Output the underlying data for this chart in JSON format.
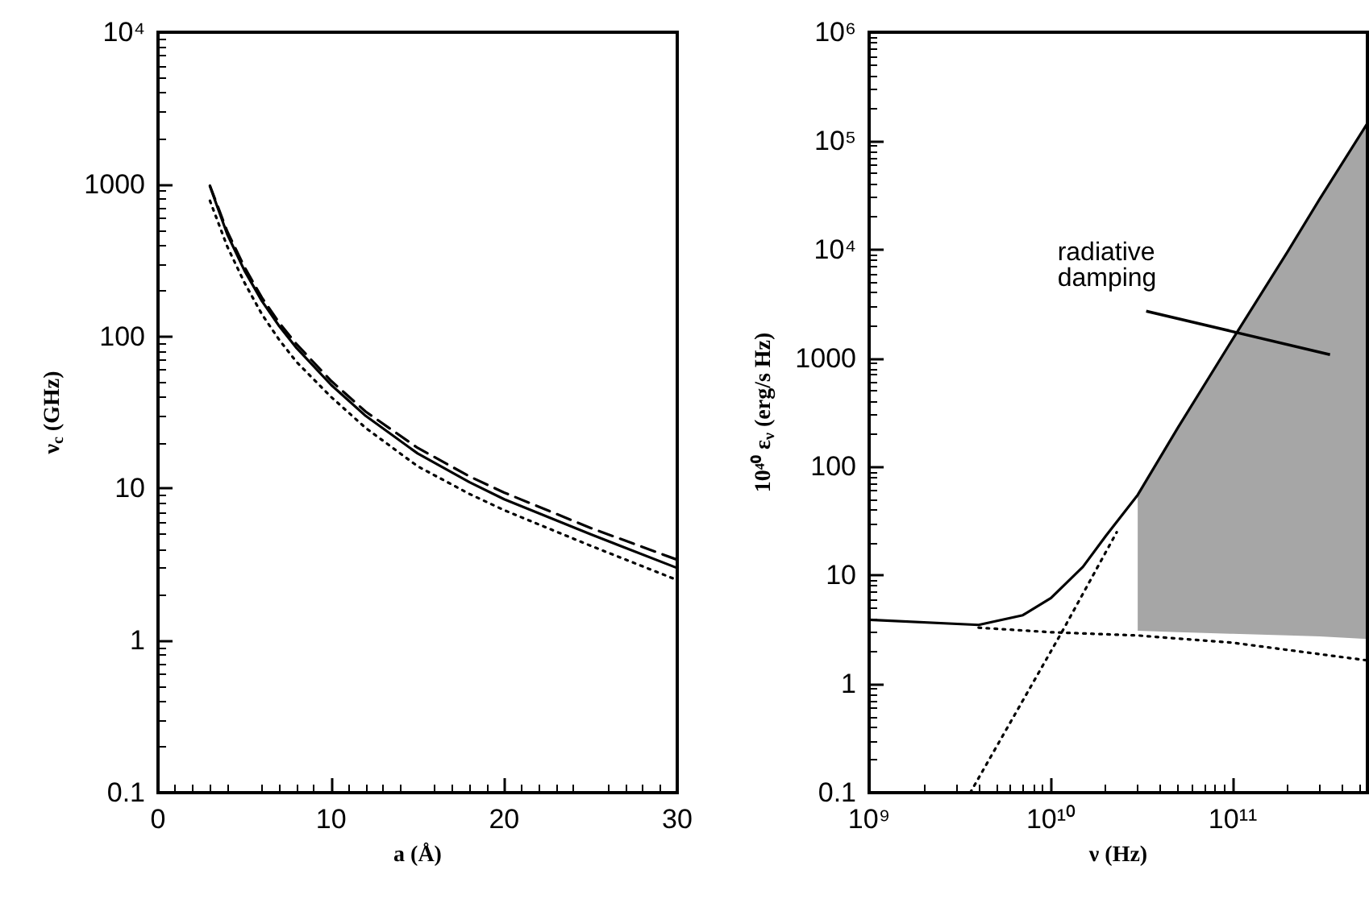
{
  "chart_data": [
    {
      "type": "line",
      "xlabel": "a (Å)",
      "ylabel": "ν$_{c}$ (GHz)",
      "log": "y",
      "marker": "none",
      "x": [
        3,
        4,
        5,
        6,
        7,
        8,
        10,
        12,
        15,
        18,
        20,
        25,
        30
      ],
      "series": [
        {
          "color": "#000000",
          "line_style": "solid",
          "values": [
            970,
            470,
            270,
            171,
            117,
            84,
            48,
            30,
            17,
            11,
            8.5,
            5,
            3.0
          ]
        },
        {
          "color": "#000000",
          "line_style": "dashed",
          "values": [
            980,
            490,
            285,
            180,
            123,
            89,
            51,
            32,
            18.5,
            12,
            9.4,
            5.5,
            3.4
          ]
        },
        {
          "color": "#000000",
          "line_style": "dotted",
          "values": [
            780,
            390,
            225,
            140,
            95,
            68,
            40,
            25,
            14,
            9.2,
            7.2,
            4.2,
            2.5
          ]
        }
      ],
      "xlim": [
        0,
        30
      ],
      "xticks": [
        0,
        10,
        20,
        30
      ],
      "ylim": [
        0.1,
        10000
      ],
      "yticks": [
        0.1,
        1,
        10,
        100,
        1000,
        {
          "value": 10000,
          "label": "10⁴"
        }
      ]
    },
    {
      "type": "line",
      "xlabel": "ν (Hz)",
      "ylabel": "10⁴⁰ ε$_{ν}$ (erg/s Hz)",
      "log": "xy",
      "marker": "none",
      "series": [
        {
          "color": "#000000",
          "line_style": "dotted",
          "x": [
            3600000000.0,
            11600000000.0,
            23000000000.0
          ],
          "values": [
            0.1,
            3.1,
            25
          ]
        },
        {
          "color": "#000000",
          "line_style": "dotted",
          "x": [
            4000000000.0,
            10000000000.0,
            30000000000.0,
            100000000000.0,
            550000000000.0
          ],
          "values": [
            3.3,
            3.0,
            2.8,
            2.4,
            1.65
          ]
        },
        {
          "color": "#000000",
          "line_style": "solid",
          "x": [
            1000000000.0,
            4000000000.0,
            7000000000.0,
            10000000000.0,
            15000000000.0,
            20000000000.0,
            30000000000.0,
            50000000000.0,
            100000000000.0,
            200000000000.0,
            300000000000.0,
            550000000000.0
          ],
          "values": [
            3.9,
            3.5,
            4.3,
            6.2,
            12,
            23,
            55,
            230,
            1500,
            9500,
            29000,
            145000
          ],
          "lower": [
            null,
            null,
            null,
            null,
            null,
            null,
            3.1,
            3.0,
            2.9,
            2.8,
            2.75,
            2.6
          ],
          "upper": [
            null,
            null,
            null,
            null,
            null,
            null,
            55,
            230,
            1500,
            9500,
            29000,
            145000
          ]
        }
      ],
      "annotations": [
        "radiative damping"
      ],
      "xlim": [
        1000000000.0,
        550000000000.0
      ],
      "xticks": [
        {
          "value": 1000000000.0,
          "label": "10⁹"
        },
        {
          "value": 10000000000.0,
          "label": "10¹⁰"
        },
        {
          "value": 100000000000.0,
          "label": "10¹¹"
        }
      ],
      "ylim": [
        0.1,
        1000000
      ],
      "yticks": [
        0.1,
        1,
        10,
        100,
        1000,
        {
          "value": 10000,
          "label": "10⁴"
        },
        {
          "value": 100000,
          "label": "10⁵"
        },
        {
          "value": 1000000,
          "label": "10⁶"
        }
      ]
    }
  ]
}
